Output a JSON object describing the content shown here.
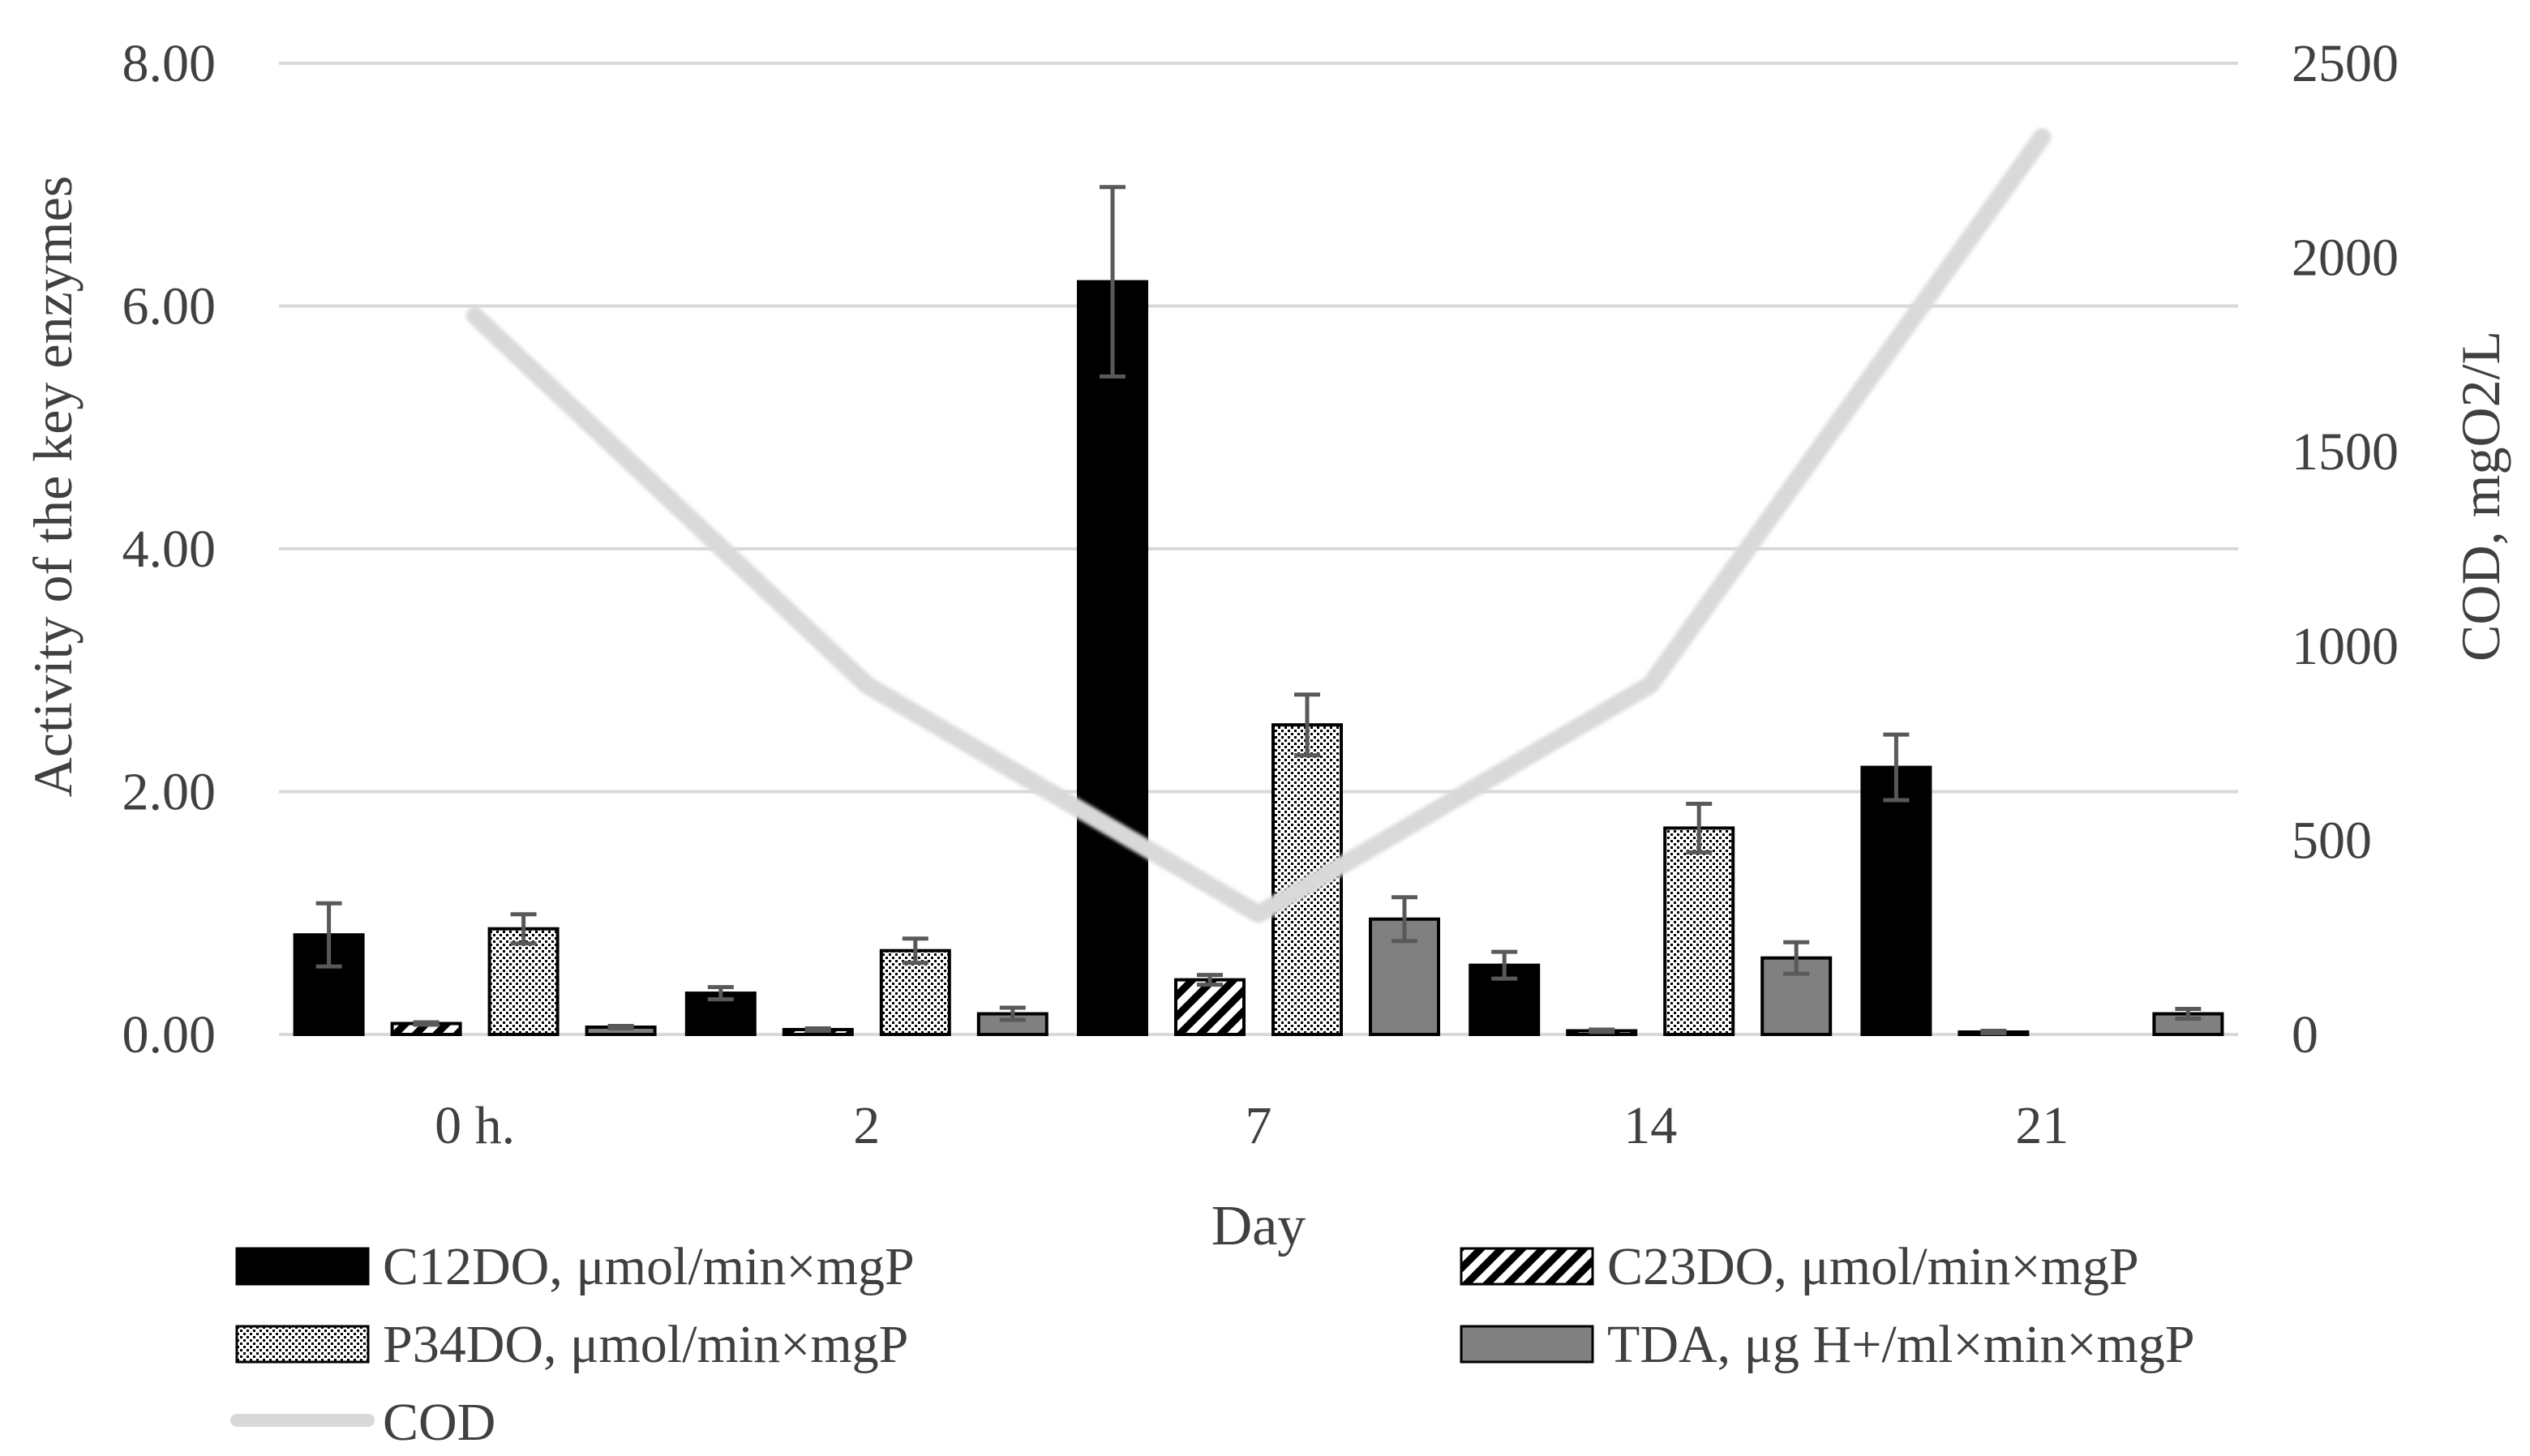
{
  "chart_data": {
    "type": "bar",
    "title": "",
    "xlabel": "Day",
    "ylabel": "Activity of the key enzymes",
    "y2label": "COD, mgO2/L",
    "categories": [
      "0 h.",
      "2",
      "7",
      "14",
      "21"
    ],
    "ylim": [
      0,
      8
    ],
    "yticks": [
      "0.00",
      "2.00",
      "4.00",
      "6.00",
      "8.00"
    ],
    "y2lim": [
      0,
      2500
    ],
    "y2ticks": [
      "0",
      "500",
      "1000",
      "1500",
      "2000",
      "2500"
    ],
    "grid": true,
    "series": [
      {
        "name": "C12DO, μmol/min×mgP",
        "axis": "left",
        "pattern": "solid",
        "color": "#000000",
        "values": [
          0.82,
          0.34,
          6.2,
          0.57,
          2.2
        ],
        "errors": [
          0.26,
          0.05,
          0.78,
          0.11,
          0.27
        ]
      },
      {
        "name": "C23DO, μmol/min×mgP",
        "axis": "left",
        "pattern": "diagonal",
        "color": "#000000",
        "values": [
          0.09,
          0.04,
          0.45,
          0.03,
          0.02
        ],
        "errors": [
          0.01,
          0.01,
          0.04,
          0.01,
          0.01
        ]
      },
      {
        "name": "P34DO, μmol/min×mgP",
        "axis": "left",
        "pattern": "dotted",
        "color": "#000000",
        "values": [
          0.87,
          0.69,
          2.55,
          1.7,
          0.0
        ],
        "errors": [
          0.12,
          0.1,
          0.25,
          0.2,
          0.0
        ]
      },
      {
        "name": "TDA, μg H+/ml×min×mgP",
        "axis": "left",
        "pattern": "solid",
        "color": "#808080",
        "values": [
          0.06,
          0.17,
          0.95,
          0.63,
          0.17
        ],
        "errors": [
          0.01,
          0.05,
          0.18,
          0.13,
          0.04
        ]
      }
    ],
    "line_series": [
      {
        "name": "COD",
        "axis": "right",
        "color": "#d9d9d9",
        "values": [
          1850,
          900,
          310,
          900,
          2310
        ]
      }
    ],
    "legend": "bottom"
  }
}
